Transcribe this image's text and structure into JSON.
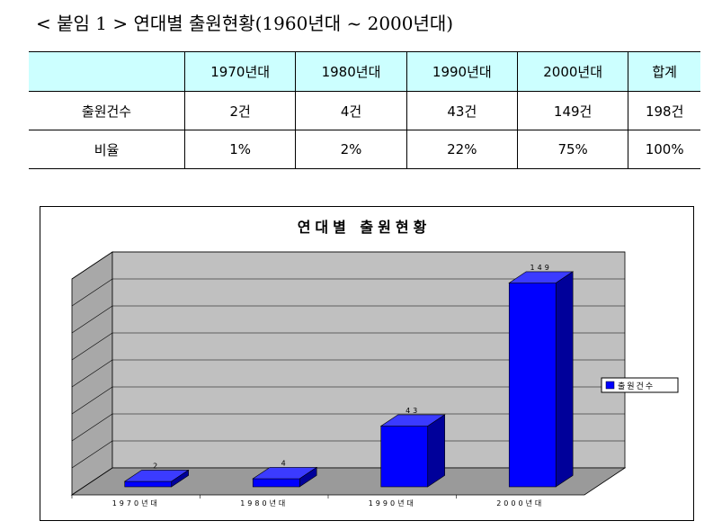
{
  "caption": "< 붙임 1 > 연대별 출원현황(1960년대 ~ 2000년대)",
  "table": {
    "headers": [
      "",
      "1970년대",
      "1980년대",
      "1990년대",
      "2000년대",
      "합계"
    ],
    "rows": [
      [
        "출원건수",
        "2건",
        "4건",
        "43건",
        "149건",
        "198건"
      ],
      [
        "비율",
        "1%",
        "2%",
        "22%",
        "75%",
        "100%"
      ]
    ]
  },
  "chart_data": {
    "type": "bar",
    "title": "연대별 출원현황",
    "categories": [
      "1970년대",
      "1980년대",
      "1990년대",
      "2000년대"
    ],
    "series": [
      {
        "name": "출원건수",
        "values": [
          2,
          4,
          43,
          149
        ],
        "color": "#0000ff"
      }
    ],
    "data_labels": [
      "2",
      "4",
      "43",
      "149"
    ],
    "ylim": [
      0,
      160
    ],
    "grid": true,
    "legend": "right",
    "style": "3d",
    "wall_color": "#c0c0c0"
  }
}
